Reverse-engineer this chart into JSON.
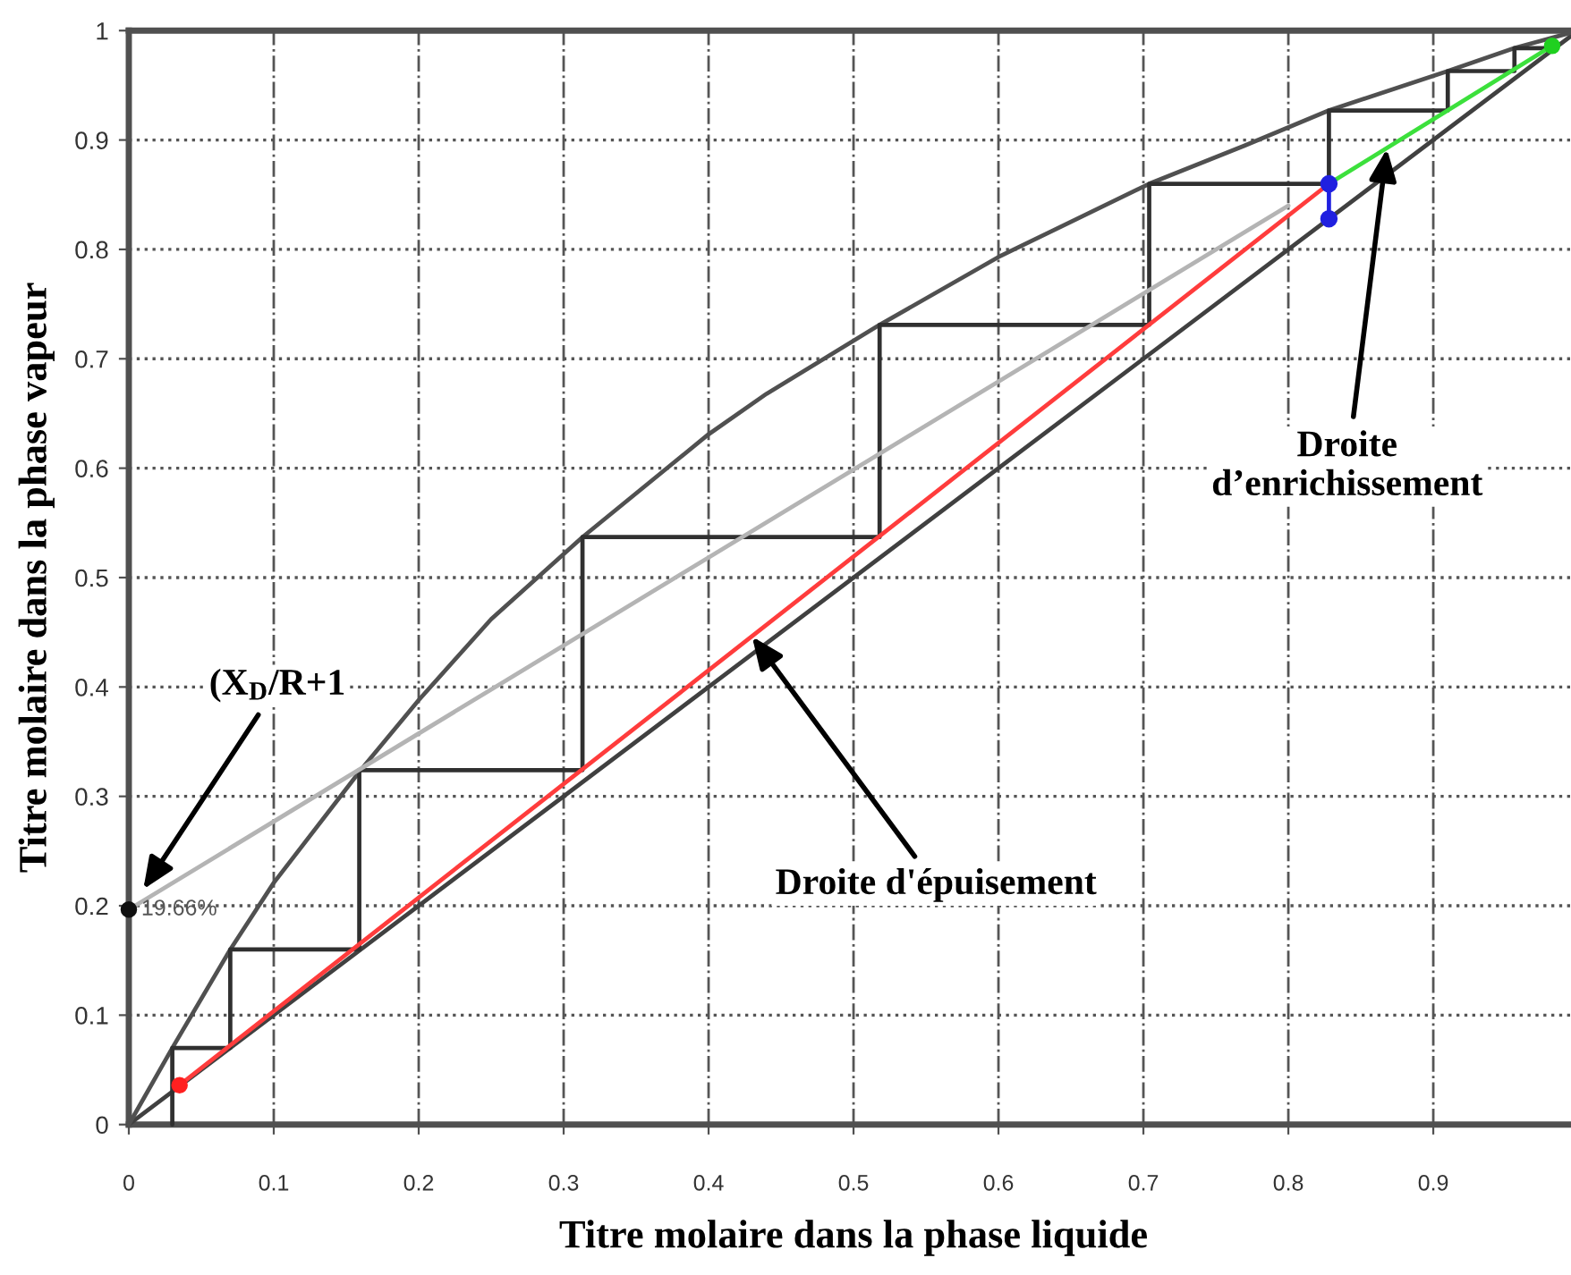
{
  "chart_data": {
    "type": "line",
    "xlabel": "Titre molaire dans la phase liquide",
    "ylabel": "Titre molaire dans la phase vapeur",
    "xlim": [
      0,
      1
    ],
    "ylim": [
      0,
      1
    ],
    "xticks": [
      0,
      0.1,
      0.2,
      0.3,
      0.4,
      0.5,
      0.6,
      0.7,
      0.8,
      0.9
    ],
    "yticks": [
      0,
      0.1,
      0.2,
      0.3,
      0.4,
      0.5,
      0.6,
      0.7,
      0.8,
      0.9,
      1
    ],
    "grid": true,
    "series": [
      {
        "color": "#404040",
        "x": [
          0,
          1
        ],
        "values": [
          0,
          1
        ]
      },
      {
        "color": "#505050",
        "x": [
          0,
          0.03,
          0.07,
          0.1,
          0.16,
          0.2,
          0.25,
          0.313,
          0.4,
          0.44,
          0.518,
          0.6,
          0.704,
          0.77,
          0.828,
          0.91,
          0.956,
          1
        ],
        "values": [
          0,
          0.07,
          0.16,
          0.221,
          0.324,
          0.388,
          0.462,
          0.537,
          0.631,
          0.668,
          0.731,
          0.793,
          0.86,
          0.895,
          0.927,
          0.963,
          0.984,
          1
        ]
      },
      {
        "color": "#303030",
        "x": [
          0.03,
          0.03,
          0.07,
          0.07,
          0.159,
          0.159,
          0.313,
          0.313,
          0.518,
          0.518,
          0.704,
          0.704,
          0.828,
          0.828,
          0.91,
          0.91,
          0.956,
          0.956,
          0.981
        ],
        "values": [
          0,
          0.07,
          0.07,
          0.16,
          0.16,
          0.324,
          0.324,
          0.537,
          0.537,
          0.731,
          0.731,
          0.86,
          0.86,
          0.927,
          0.927,
          0.963,
          0.963,
          0.984,
          0.984
        ]
      },
      {
        "color": "#b4b4b4",
        "x": [
          0,
          0.8
        ],
        "values": [
          0.1966,
          0.84
        ]
      },
      {
        "color": "#ff3c3c",
        "x": [
          0.035,
          0.828
        ],
        "values": [
          0.036,
          0.86
        ]
      },
      {
        "color": "#3ce03c",
        "x": [
          0.828,
          0.982
        ],
        "values": [
          0.86,
          0.986
        ]
      },
      {
        "color": "#2020e0",
        "marker": "circle",
        "x": [
          0.828,
          0.828
        ],
        "values": [
          0.86,
          0.828
        ]
      },
      {
        "type": "scatter",
        "color": "#ff2020",
        "marker": "circle",
        "x": [
          0.035
        ],
        "values": [
          0.036
        ]
      },
      {
        "type": "scatter",
        "color": "#20d020",
        "marker": "circle",
        "x": [
          0.982
        ],
        "values": [
          0.986
        ]
      },
      {
        "type": "scatter",
        "color": "#101010",
        "marker": "circle",
        "x": [
          0
        ],
        "values": [
          0.1966
        ],
        "value_labels": [
          "19.66%"
        ]
      }
    ],
    "annotations": [
      {
        "text": "(X$_{D}$/R+1",
        "x": 0.01,
        "y": 0.215
      },
      {
        "text": "Droite d'épuisement",
        "x": 0.43,
        "y": 0.446
      },
      {
        "text": "Droite\nd’enrichissement",
        "x": 0.868,
        "y": 0.892
      }
    ]
  }
}
